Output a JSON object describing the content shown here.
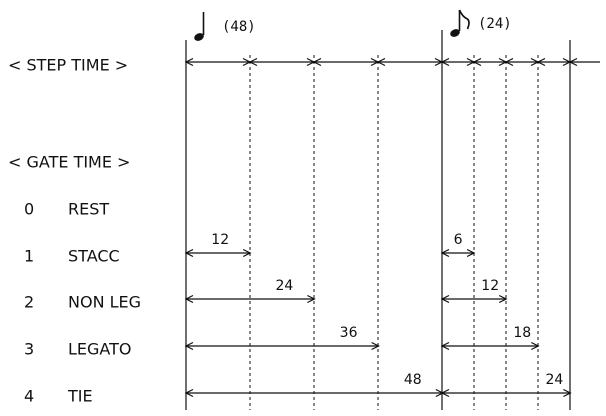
{
  "notes": [
    "(48)",
    "(24)"
  ],
  "step_time": "< STEP TIME >",
  "gate_time": "< GATE TIME >",
  "rows": [
    {
      "number": "0",
      "name": "REST",
      "quarter": null,
      "eighth": null
    },
    {
      "number": "1",
      "name": "STACC",
      "quarter": 12,
      "eighth": 6
    },
    {
      "number": "2",
      "name": "NON LEG",
      "quarter": 24,
      "eighth": 12
    },
    {
      "number": "3",
      "name": "LEGATO",
      "quarter": 36,
      "eighth": 18
    },
    {
      "number": "4",
      "name": "TIE",
      "quarter": 48,
      "eighth": 24
    }
  ]
}
